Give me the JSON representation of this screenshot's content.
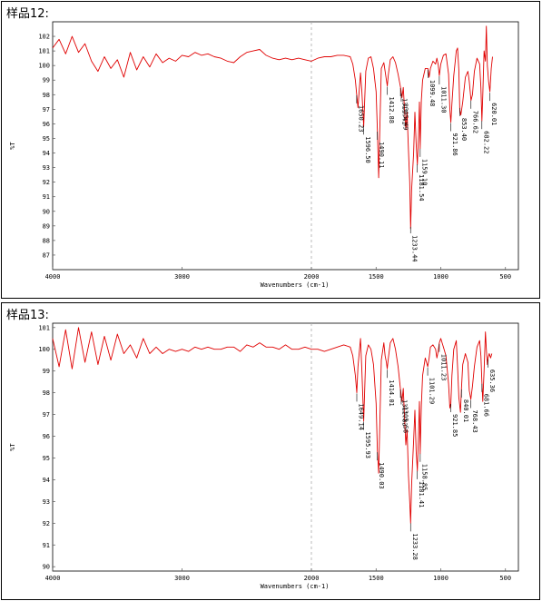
{
  "colors": {
    "trace": "#e00000",
    "axis": "#555555",
    "frame": "#000000",
    "dashed": "#aaaaaa"
  },
  "chart_data": [
    {
      "type": "line",
      "title": "样品12:",
      "xlabel": "Wavenumbers (cm-1)",
      "ylabel": "%T",
      "xlim": [
        4000,
        400
      ],
      "x_ticks": [
        4000,
        3000,
        2000,
        1500,
        1000,
        500
      ],
      "x_tick_labels": [
        "4000",
        "3000",
        "2000",
        "1500",
        "1000",
        "500"
      ],
      "ylim": [
        86,
        103
      ],
      "y_ticks": [
        87,
        88,
        89,
        90,
        91,
        92,
        93,
        94,
        95,
        96,
        97,
        98,
        99,
        100,
        101,
        102
      ],
      "y_tick_labels": [
        "87",
        "88",
        "89",
        "90",
        "91",
        "92",
        "93",
        "94",
        "95",
        "96",
        "97",
        "98",
        "99",
        "100",
        "101",
        "102"
      ],
      "series": [
        {
          "x": [
            4000,
            3950,
            3900,
            3850,
            3800,
            3750,
            3700,
            3650,
            3600,
            3550,
            3500,
            3450,
            3400,
            3350,
            3300,
            3250,
            3200,
            3150,
            3100,
            3050,
            3000,
            2950,
            2900,
            2850,
            2800,
            2750,
            2700,
            2650,
            2600,
            2550,
            2500,
            2450,
            2400,
            2350,
            2300,
            2250,
            2200,
            2150,
            2100,
            2050,
            2000,
            1950,
            1900,
            1850,
            1800,
            1750,
            1700,
            1680,
            1660,
            1650,
            1640,
            1620,
            1610,
            1596,
            1580,
            1560,
            1540,
            1520,
            1500,
            1490,
            1480,
            1470,
            1460,
            1440,
            1430,
            1420,
            1413,
            1405,
            1390,
            1370,
            1350,
            1330,
            1311,
            1300,
            1290,
            1280,
            1270,
            1260,
            1250,
            1240,
            1233,
            1225,
            1210,
            1200,
            1190,
            1181,
            1172,
            1165,
            1159,
            1150,
            1140,
            1120,
            1110,
            1100,
            1090,
            1080,
            1060,
            1040,
            1030,
            1020,
            1011,
            1000,
            980,
            960,
            940,
            930,
            922,
            914,
            900,
            880,
            870,
            860,
            853,
            845,
            830,
            810,
            790,
            780,
            766,
            755,
            740,
            720,
            700,
            690,
            682,
            675,
            665,
            655,
            648,
            640,
            630,
            620,
            610,
            600
          ],
          "y": [
            101.2,
            101.8,
            100.8,
            102.0,
            100.9,
            101.5,
            100.3,
            99.6,
            100.6,
            99.8,
            100.4,
            99.2,
            100.9,
            99.7,
            100.6,
            99.9,
            100.8,
            100.2,
            100.5,
            100.3,
            100.7,
            100.6,
            100.9,
            100.7,
            100.8,
            100.6,
            100.5,
            100.3,
            100.2,
            100.6,
            100.9,
            101.0,
            101.1,
            100.7,
            100.5,
            100.4,
            100.5,
            100.4,
            100.5,
            100.4,
            100.3,
            100.5,
            100.6,
            100.6,
            100.7,
            100.7,
            100.6,
            100.1,
            99.0,
            98.0,
            97.1,
            99.5,
            98.2,
            95.8,
            99.6,
            100.5,
            100.6,
            99.8,
            98.2,
            95.5,
            92.3,
            96.0,
            99.8,
            100.2,
            99.6,
            99.0,
            98.6,
            99.4,
            100.4,
            100.6,
            100.2,
            99.4,
            98.5,
            97.8,
            98.5,
            97.0,
            95.6,
            96.8,
            94.2,
            92.0,
            88.8,
            91.5,
            94.0,
            96.8,
            94.6,
            93.2,
            95.2,
            97.5,
            94.3,
            97.6,
            99.0,
            99.8,
            99.8,
            99.8,
            99.2,
            99.8,
            100.3,
            100.1,
            100.5,
            100.1,
            99.3,
            100.1,
            100.7,
            100.8,
            99.4,
            97.0,
            96.1,
            97.4,
            99.3,
            101.0,
            101.2,
            99.7,
            97.0,
            96.6,
            97.5,
            99.2,
            99.6,
            98.9,
            97.6,
            98.0,
            99.6,
            100.5,
            100.1,
            98.5,
            96.2,
            98.0,
            101.0,
            100.3,
            102.7,
            100.0,
            98.9,
            98.2,
            99.8,
            100.6
          ]
        }
      ],
      "peaks": [
        {
          "x": 1650.23,
          "label": "1650.23"
        },
        {
          "x": 1596.5,
          "label": "1596.50"
        },
        {
          "x": 1490.11,
          "label": "1490.11"
        },
        {
          "x": 1412.88,
          "label": "1412.88"
        },
        {
          "x": 1311.41,
          "label": "1311.41"
        },
        {
          "x": 1305.49,
          "label": "1305.49"
        },
        {
          "x": 1233.44,
          "label": "1233.44"
        },
        {
          "x": 1181.54,
          "label": "1181.54"
        },
        {
          "x": 1159.1,
          "label": "1159.10"
        },
        {
          "x": 1099.48,
          "label": "1099.48"
        },
        {
          "x": 1011.3,
          "label": "1011.30"
        },
        {
          "x": 921.86,
          "label": "921.86"
        },
        {
          "x": 853.4,
          "label": "853.40"
        },
        {
          "x": 766.62,
          "label": "766.62"
        },
        {
          "x": 682.22,
          "label": "682.22"
        },
        {
          "x": 620.01,
          "label": "620.01"
        }
      ]
    },
    {
      "type": "line",
      "title": "样品13:",
      "xlabel": "Wavenumbers (cm-1)",
      "ylabel": "%T",
      "xlim": [
        4000,
        400
      ],
      "x_ticks": [
        4000,
        3000,
        2000,
        1500,
        1000,
        500
      ],
      "x_tick_labels": [
        "4000",
        "3000",
        "2000",
        "1500",
        "1000",
        "500"
      ],
      "ylim": [
        89.8,
        101.2
      ],
      "y_ticks": [
        90,
        91,
        92,
        93,
        94,
        95,
        96,
        97,
        98,
        99,
        100,
        101
      ],
      "y_tick_labels": [
        "90",
        "91",
        "92",
        "93",
        "94",
        "95",
        "96",
        "97",
        "98",
        "99",
        "100",
        "101"
      ],
      "series": [
        {
          "x": [
            4000,
            3950,
            3900,
            3850,
            3800,
            3750,
            3700,
            3650,
            3600,
            3550,
            3500,
            3450,
            3400,
            3350,
            3300,
            3250,
            3200,
            3150,
            3100,
            3050,
            3000,
            2950,
            2900,
            2850,
            2800,
            2750,
            2700,
            2650,
            2600,
            2550,
            2500,
            2450,
            2400,
            2350,
            2300,
            2250,
            2200,
            2150,
            2100,
            2050,
            2000,
            1950,
            1900,
            1850,
            1800,
            1750,
            1700,
            1680,
            1660,
            1649,
            1640,
            1620,
            1610,
            1596,
            1580,
            1560,
            1540,
            1520,
            1500,
            1490,
            1480,
            1470,
            1460,
            1440,
            1430,
            1420,
            1414,
            1405,
            1390,
            1370,
            1350,
            1330,
            1312,
            1300,
            1290,
            1280,
            1270,
            1260,
            1250,
            1240,
            1233,
            1225,
            1210,
            1200,
            1190,
            1181,
            1172,
            1165,
            1159,
            1150,
            1140,
            1120,
            1110,
            1101,
            1090,
            1080,
            1060,
            1040,
            1030,
            1020,
            1011,
            1000,
            980,
            960,
            940,
            930,
            922,
            914,
            900,
            880,
            870,
            860,
            848,
            840,
            830,
            810,
            790,
            780,
            768,
            755,
            740,
            720,
            700,
            690,
            682,
            675,
            665,
            655,
            648,
            640,
            635,
            625,
            615,
            605
          ],
          "y": [
            100.5,
            99.2,
            100.9,
            99.1,
            101.0,
            99.4,
            100.8,
            99.3,
            100.6,
            99.5,
            100.7,
            99.8,
            100.2,
            99.6,
            100.5,
            99.8,
            100.1,
            99.8,
            100.0,
            99.9,
            100.0,
            99.9,
            100.1,
            100.0,
            100.1,
            100.0,
            100.0,
            100.1,
            100.1,
            99.9,
            100.2,
            100.1,
            100.3,
            100.1,
            100.1,
            100.0,
            100.2,
            100.0,
            100.0,
            100.1,
            100.0,
            100.0,
            99.9,
            100.0,
            100.1,
            100.2,
            100.1,
            99.7,
            98.8,
            98.0,
            99.2,
            100.5,
            99.0,
            96.7,
            99.7,
            100.2,
            100.0,
            99.3,
            97.5,
            95.3,
            94.3,
            96.8,
            99.5,
            100.3,
            99.7,
            99.4,
            99.1,
            99.6,
            100.3,
            100.5,
            100.0,
            99.2,
            98.2,
            97.6,
            98.2,
            96.9,
            95.6,
            96.3,
            94.2,
            93.0,
            92.0,
            93.8,
            95.8,
            97.2,
            95.3,
            94.4,
            96.1,
            97.6,
            95.2,
            97.4,
            98.8,
            99.6,
            99.4,
            99.2,
            99.6,
            100.1,
            100.2,
            100.0,
            99.6,
            99.9,
            100.3,
            100.5,
            100.1,
            99.7,
            98.4,
            97.3,
            97.5,
            98.8,
            100.0,
            100.4,
            99.2,
            97.8,
            97.1,
            98.2,
            99.3,
            99.8,
            99.4,
            98.1,
            97.7,
            98.3,
            99.2,
            100.1,
            100.4,
            99.7,
            98.5,
            97.6,
            99.0,
            100.8,
            100.0,
            99.3,
            99.6,
            99.8,
            99.6,
            99.8
          ]
        }
      ],
      "peaks": [
        {
          "x": 1649.14,
          "label": "1649.14"
        },
        {
          "x": 1595.93,
          "label": "1595.93"
        },
        {
          "x": 1490.03,
          "label": "1490.03"
        },
        {
          "x": 1414.01,
          "label": "1414.01"
        },
        {
          "x": 1311.83,
          "label": "1311.83"
        },
        {
          "x": 1305.56,
          "label": "1305.56"
        },
        {
          "x": 1233.28,
          "label": "1233.28"
        },
        {
          "x": 1181.41,
          "label": "1181.41"
        },
        {
          "x": 1158.85,
          "label": "1158.85"
        },
        {
          "x": 1101.29,
          "label": "1101.29"
        },
        {
          "x": 1011.23,
          "label": "1011.23"
        },
        {
          "x": 921.85,
          "label": "921.85"
        },
        {
          "x": 840.01,
          "label": "840.01"
        },
        {
          "x": 768.43,
          "label": "768.43"
        },
        {
          "x": 681.66,
          "label": "681.66"
        },
        {
          "x": 635.36,
          "label": "635.36"
        }
      ]
    }
  ]
}
